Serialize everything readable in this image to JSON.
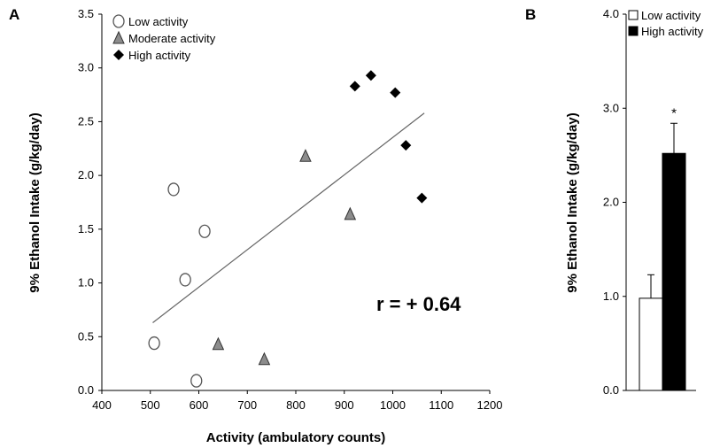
{
  "chart_data": [
    {
      "panel": "A",
      "type": "scatter",
      "xlabel": "Activity (ambulatory counts)",
      "ylabel": "9% Ethanol Intake (g/kg/day)",
      "xlim": [
        400,
        1200
      ],
      "ylim": [
        0,
        3.5
      ],
      "xticks": [
        "400",
        "500",
        "600",
        "700",
        "800",
        "900",
        "1000",
        "1100",
        "1200"
      ],
      "yticks": [
        "0.0",
        "0.5",
        "1.0",
        "1.5",
        "2.0",
        "2.5",
        "3.0",
        "3.5"
      ],
      "legend_position": "top-left",
      "series": [
        {
          "name": "Low activity",
          "marker": "circle-open",
          "points": [
            [
              548,
              1.87
            ],
            [
              612,
              1.48
            ],
            [
              572,
              1.03
            ],
            [
              508,
              0.44
            ],
            [
              595,
              0.09
            ]
          ]
        },
        {
          "name": "Moderate activity",
          "marker": "triangle-gray",
          "color": "#8c8c8c",
          "points": [
            [
              820,
              2.18
            ],
            [
              912,
              1.64
            ],
            [
              640,
              0.43
            ],
            [
              735,
              0.29
            ]
          ]
        },
        {
          "name": "High activity",
          "marker": "diamond-filled",
          "color": "#000000",
          "points": [
            [
              922,
              2.83
            ],
            [
              955,
              2.93
            ],
            [
              1005,
              2.77
            ],
            [
              1027,
              2.28
            ],
            [
              1060,
              1.79
            ]
          ]
        }
      ],
      "regression_line": [
        [
          505,
          0.63
        ],
        [
          1065,
          2.58
        ]
      ],
      "annotation": "r = + 0.64"
    },
    {
      "panel": "B",
      "type": "bar",
      "ylabel": "9% Ethanol Intake (g/kg/day)",
      "ylim": [
        0,
        4.0
      ],
      "yticks": [
        "0.0",
        "1.0",
        "2.0",
        "3.0",
        "4.0"
      ],
      "legend_position": "top-left",
      "series": [
        {
          "name": "Low activity",
          "value": 0.98,
          "error": 0.25,
          "fill": "#ffffff"
        },
        {
          "name": "High activity",
          "value": 2.52,
          "error": 0.32,
          "fill": "#000000"
        }
      ],
      "significance_marker": "*"
    }
  ]
}
